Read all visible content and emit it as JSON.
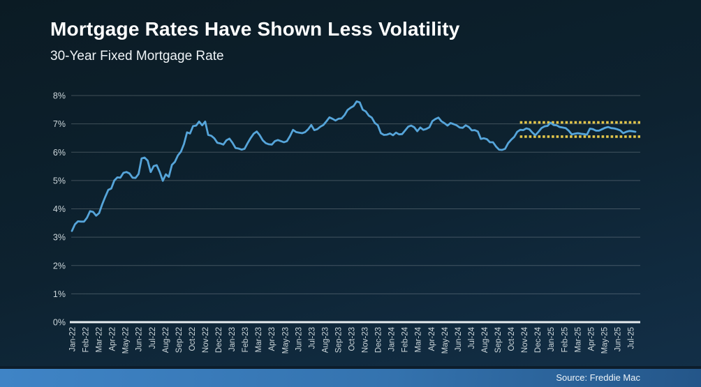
{
  "slide": {
    "title": "Mortgage Rates Have Shown Less Volatility",
    "subtitle": "30-Year Fixed Mortgage Rate"
  },
  "footer": {
    "source": "Source: Freddie Mac"
  },
  "colors": {
    "background_top": "#0b1b24",
    "background_bottom": "#133049",
    "line": "#56a5da",
    "band_dotted": "#e2c54b",
    "grid": "rgba(255,255,255,0.22)",
    "axis": "#e8edf0",
    "tick_text": "#ccd6da",
    "footer_bar_left": "#3f84c6",
    "footer_bar_right": "#245689"
  },
  "chart_data": {
    "type": "line",
    "title": "Mortgage Rates Have Shown Less Volatility",
    "subtitle": "30-Year Fixed Mortgage Rate",
    "source": "Source: Freddie Mac",
    "grid": true,
    "legend": false,
    "ylim": [
      0,
      8
    ],
    "y_ticks": [
      "0%",
      "1%",
      "2%",
      "3%",
      "4%",
      "5%",
      "6%",
      "7%",
      "8%"
    ],
    "x_tick_labels": [
      "Jan-22",
      "Feb-22",
      "Mar-22",
      "Apr-22",
      "May-22",
      "Jun-22",
      "Jul-22",
      "Aug-22",
      "Sep-22",
      "Oct-22",
      "Nov-22",
      "Dec-22",
      "Jan-23",
      "Feb-23",
      "Mar-23",
      "Apr-23",
      "May-23",
      "Jun-23",
      "Jul-23",
      "Aug-23",
      "Sep-23",
      "Oct-23",
      "Nov-23",
      "Dec-23",
      "Jan-24",
      "Feb-24",
      "Mar-24",
      "Apr-24",
      "May-24",
      "Jun-24",
      "Jul-24",
      "Aug-24",
      "Sep-24",
      "Oct-24",
      "Nov-24",
      "Dec-24",
      "Jan-25",
      "Feb-25",
      "Mar-25",
      "Apr-25",
      "May-25",
      "Jun-25",
      "Jul-25"
    ],
    "series": [
      {
        "name": "30-Year Fixed Mortgage Rate",
        "frequency": "weekly",
        "color": "#56a5da",
        "values": [
          3.22,
          3.45,
          3.56,
          3.55,
          3.55,
          3.69,
          3.92,
          3.89,
          3.76,
          3.85,
          4.16,
          4.42,
          4.67,
          4.72,
          5.0,
          5.11,
          5.1,
          5.27,
          5.3,
          5.25,
          5.1,
          5.09,
          5.23,
          5.78,
          5.81,
          5.7,
          5.3,
          5.51,
          5.54,
          5.3,
          4.99,
          5.22,
          5.13,
          5.55,
          5.66,
          5.89,
          6.02,
          6.29,
          6.7,
          6.66,
          6.92,
          6.94,
          7.08,
          6.95,
          7.08,
          6.61,
          6.58,
          6.49,
          6.33,
          6.31,
          6.27,
          6.42,
          6.48,
          6.33,
          6.15,
          6.13,
          6.09,
          6.12,
          6.32,
          6.5,
          6.65,
          6.73,
          6.6,
          6.42,
          6.32,
          6.28,
          6.27,
          6.39,
          6.43,
          6.39,
          6.35,
          6.39,
          6.57,
          6.79,
          6.71,
          6.69,
          6.67,
          6.71,
          6.81,
          6.96,
          6.78,
          6.81,
          6.9,
          6.96,
          7.09,
          7.23,
          7.18,
          7.12,
          7.18,
          7.19,
          7.31,
          7.49,
          7.57,
          7.63,
          7.79,
          7.76,
          7.5,
          7.44,
          7.29,
          7.22,
          7.03,
          6.95,
          6.67,
          6.61,
          6.62,
          6.66,
          6.6,
          6.69,
          6.63,
          6.64,
          6.77,
          6.9,
          6.94,
          6.88,
          6.74,
          6.87,
          6.79,
          6.82,
          6.88,
          7.1,
          7.17,
          7.22,
          7.09,
          7.02,
          6.94,
          7.03,
          6.99,
          6.95,
          6.87,
          6.86,
          6.95,
          6.89,
          6.77,
          6.78,
          6.73,
          6.47,
          6.49,
          6.46,
          6.35,
          6.35,
          6.2,
          6.09,
          6.08,
          6.12,
          6.32,
          6.44,
          6.54,
          6.72,
          6.79,
          6.78,
          6.84,
          6.81,
          6.69,
          6.6,
          6.72,
          6.85,
          6.91,
          6.93,
          7.04,
          6.96,
          6.95,
          6.89,
          6.87,
          6.85,
          6.76,
          6.63,
          6.65,
          6.67,
          6.65,
          6.64,
          6.62,
          6.83,
          6.81,
          6.76,
          6.76,
          6.81,
          6.86,
          6.89,
          6.85,
          6.84,
          6.81,
          6.77,
          6.67,
          6.72,
          6.75,
          6.74,
          6.72
        ]
      }
    ],
    "annotations": [
      {
        "type": "dotted-range",
        "top": 7.05,
        "bottom": 6.55,
        "from": "Nov-24",
        "to": "Jul-25",
        "style": "dotted",
        "color": "#e2c54b"
      }
    ]
  }
}
